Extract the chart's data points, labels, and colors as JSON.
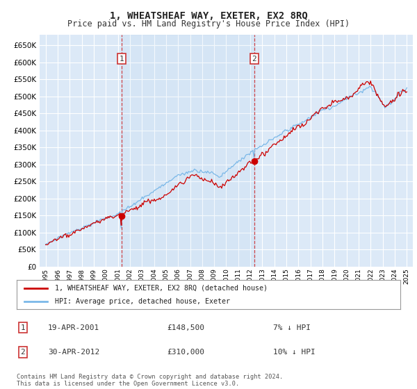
{
  "title": "1, WHEATSHEAF WAY, EXETER, EX2 8RQ",
  "subtitle": "Price paid vs. HM Land Registry's House Price Index (HPI)",
  "background_color": "#dce9f7",
  "plot_bg_color": "#dce9f7",
  "grid_color": "#ffffff",
  "hpi_color": "#7ab8e8",
  "price_color": "#cc0000",
  "ylim": [
    0,
    680000
  ],
  "yticks": [
    0,
    50000,
    100000,
    150000,
    200000,
    250000,
    300000,
    350000,
    400000,
    450000,
    500000,
    550000,
    600000,
    650000
  ],
  "sale1_date": 2001.3,
  "sale1_price": 148500,
  "sale2_date": 2012.33,
  "sale2_price": 310000,
  "legend_line1": "1, WHEATSHEAF WAY, EXETER, EX2 8RQ (detached house)",
  "legend_line2": "HPI: Average price, detached house, Exeter",
  "annotation1_label": "1",
  "annotation1_date": "19-APR-2001",
  "annotation1_price": "£148,500",
  "annotation1_hpi": "7% ↓ HPI",
  "annotation2_label": "2",
  "annotation2_date": "30-APR-2012",
  "annotation2_price": "£310,000",
  "annotation2_hpi": "10% ↓ HPI",
  "footer": "Contains HM Land Registry data © Crown copyright and database right 2024.\nThis data is licensed under the Open Government Licence v3.0.",
  "xstart": 1995,
  "xend": 2025
}
